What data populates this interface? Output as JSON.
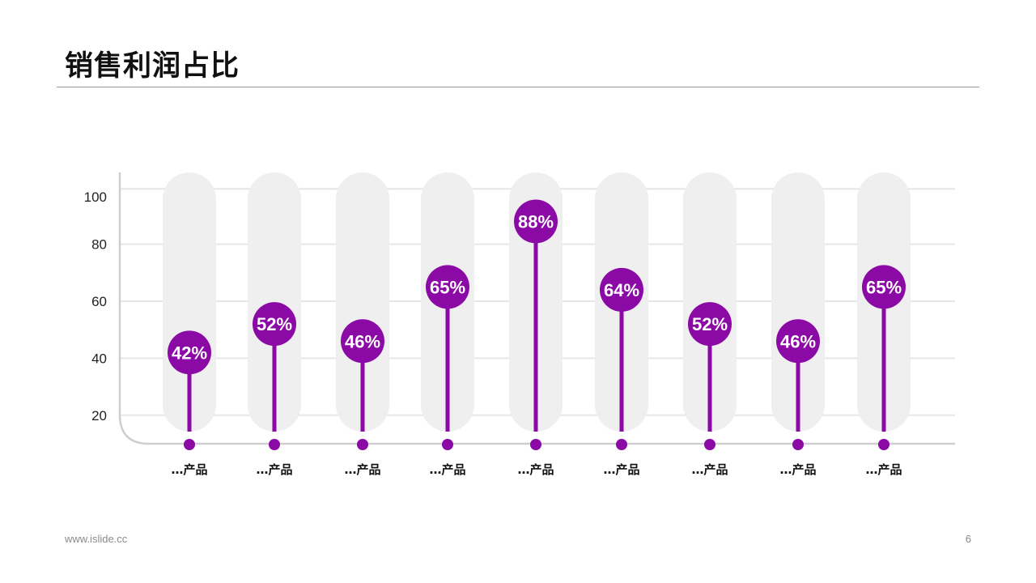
{
  "page": {
    "title": "销售利润占比",
    "footer_url": "www.islide.cc",
    "page_number": "6"
  },
  "colors": {
    "accent": "#8B0AA6",
    "track": "#EFEFEF",
    "grid": "#E6E6E6",
    "axis": "#CFCFCF"
  },
  "chart_data": {
    "type": "bar",
    "style": "lollipop",
    "categories": [
      "…产品",
      "…产品",
      "…产品",
      "…产品",
      "…产品",
      "…产品",
      "…产品",
      "…产品",
      "…产品"
    ],
    "values": [
      42,
      52,
      46,
      65,
      88,
      64,
      52,
      46,
      65
    ],
    "value_labels": [
      "42%",
      "52%",
      "46%",
      "65%",
      "88%",
      "64%",
      "52%",
      "46%",
      "65%"
    ],
    "yticks": [
      20,
      40,
      60,
      80,
      100
    ],
    "ylim": [
      10,
      100
    ],
    "grid": true,
    "legend": "none"
  }
}
